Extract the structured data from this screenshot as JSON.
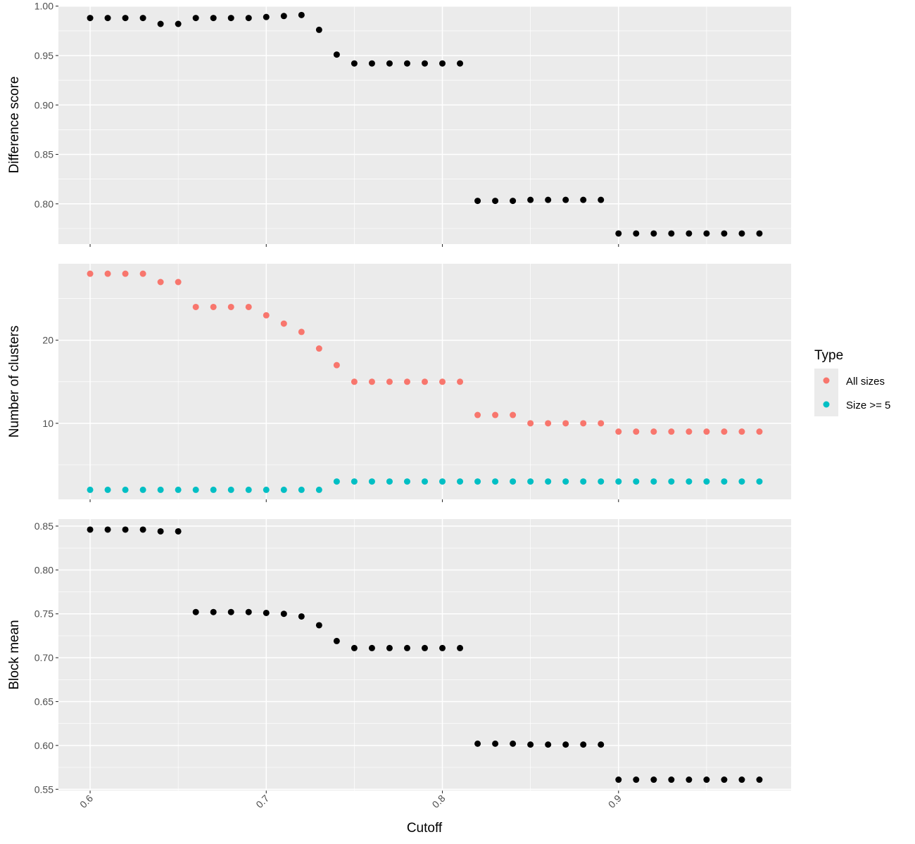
{
  "chart_data": {
    "type": "scatter",
    "x": [
      0.6,
      0.61,
      0.62,
      0.63,
      0.64,
      0.65,
      0.66,
      0.67,
      0.68,
      0.69,
      0.7,
      0.71,
      0.72,
      0.73,
      0.74,
      0.75,
      0.76,
      0.77,
      0.78,
      0.79,
      0.8,
      0.81,
      0.82,
      0.83,
      0.84,
      0.85,
      0.86,
      0.87,
      0.88,
      0.89,
      0.9,
      0.91,
      0.92,
      0.93,
      0.94,
      0.95,
      0.96,
      0.97,
      0.98
    ],
    "xlabel": "Cutoff",
    "x_ticks": [
      "0.6",
      "0.7",
      "0.8",
      "0.9"
    ],
    "xlim": [
      0.582,
      0.998
    ],
    "panels": [
      {
        "ylabel": "Difference score",
        "y_ticks": [
          "0.80",
          "0.85",
          "0.90",
          "0.95",
          "1.00"
        ],
        "ylim": [
          0.7593,
          1.0005
        ],
        "series": [
          {
            "color": "#000000",
            "values": [
              0.988,
              0.988,
              0.988,
              0.988,
              0.982,
              0.982,
              0.988,
              0.988,
              0.988,
              0.988,
              0.989,
              0.99,
              0.991,
              0.976,
              0.951,
              0.942,
              0.942,
              0.942,
              0.942,
              0.942,
              0.942,
              0.942,
              0.803,
              0.803,
              0.803,
              0.804,
              0.804,
              0.804,
              0.804,
              0.804,
              0.77,
              0.77,
              0.77,
              0.77,
              0.77,
              0.77,
              0.77,
              0.77,
              0.77
            ]
          }
        ]
      },
      {
        "ylabel": "Number of clusters",
        "y_ticks": [
          "10",
          "20"
        ],
        "ylim": [
          0.848,
          29.2
        ],
        "series": [
          {
            "name": "All sizes",
            "color": "#F8766D",
            "values": [
              28,
              28,
              28,
              28,
              27,
              27,
              24,
              24,
              24,
              24,
              23,
              22,
              21,
              19,
              17,
              15,
              15,
              15,
              15,
              15,
              15,
              15,
              11,
              11,
              11,
              10,
              10,
              10,
              10,
              10,
              9,
              9,
              9,
              9,
              9,
              9,
              9,
              9,
              9
            ]
          },
          {
            "name": "Size >= 5",
            "color": "#00BFC4",
            "values": [
              2,
              2,
              2,
              2,
              2,
              2,
              2,
              2,
              2,
              2,
              2,
              2,
              2,
              2,
              3,
              3,
              3,
              3,
              3,
              3,
              3,
              3,
              3,
              3,
              3,
              3,
              3,
              3,
              3,
              3,
              3,
              3,
              3,
              3,
              3,
              3,
              3,
              3,
              3
            ]
          }
        ]
      },
      {
        "ylabel": "Block mean",
        "y_ticks": [
          "0.55",
          "0.60",
          "0.65",
          "0.70",
          "0.75",
          "0.80",
          "0.85"
        ],
        "ylim": [
          0.5486,
          0.858
        ],
        "series": [
          {
            "color": "#000000",
            "values": [
              0.846,
              0.846,
              0.846,
              0.846,
              0.844,
              0.844,
              0.752,
              0.752,
              0.752,
              0.752,
              0.751,
              0.75,
              0.747,
              0.737,
              0.719,
              0.711,
              0.711,
              0.711,
              0.711,
              0.711,
              0.711,
              0.711,
              0.602,
              0.602,
              0.602,
              0.601,
              0.601,
              0.601,
              0.601,
              0.601,
              0.561,
              0.561,
              0.561,
              0.561,
              0.561,
              0.561,
              0.561,
              0.561,
              0.561
            ]
          }
        ]
      }
    ],
    "legend": {
      "title": "Type",
      "position": "right",
      "entries": [
        {
          "label": "All sizes",
          "color": "#F8766D"
        },
        {
          "label": "Size >= 5",
          "color": "#00BFC4"
        }
      ]
    },
    "grid": true,
    "panel_background": "#EBEBEB"
  }
}
